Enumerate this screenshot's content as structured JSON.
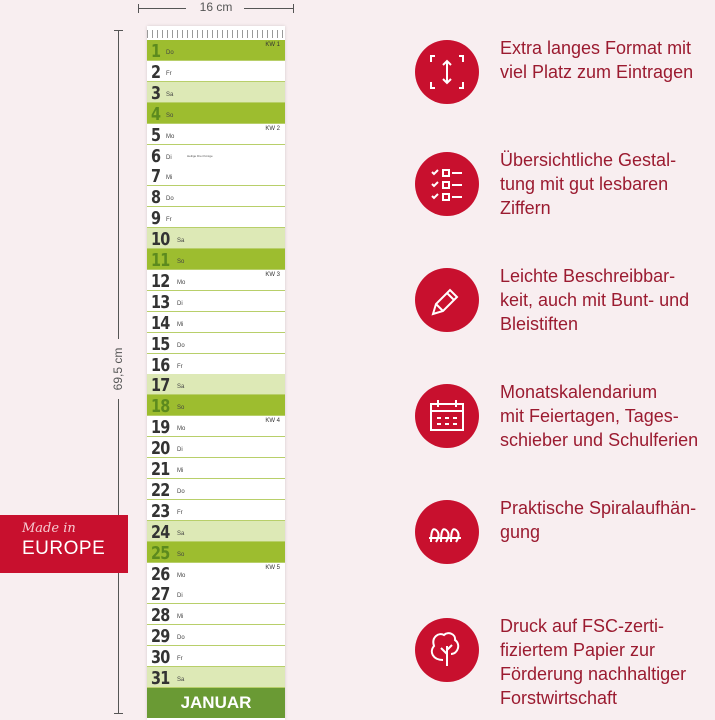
{
  "dimensions": {
    "width_label": "16 cm",
    "height_label": "69,5 cm"
  },
  "badge": {
    "line1": "Made in",
    "line2": "EUROPE"
  },
  "calendar": {
    "month": "JANUAR",
    "days": [
      {
        "n": "1",
        "wd": "Do",
        "type": "sun",
        "kw": "KW 1"
      },
      {
        "n": "2",
        "wd": "Fr",
        "type": "day"
      },
      {
        "n": "3",
        "wd": "Sa",
        "type": "sat"
      },
      {
        "n": "4",
        "wd": "So",
        "type": "sun"
      },
      {
        "n": "5",
        "wd": "Mo",
        "type": "day",
        "kw": "KW 2"
      },
      {
        "n": "6",
        "wd": "Di",
        "type": "day",
        "note": "Heilige Drei Könige"
      },
      {
        "n": "7",
        "wd": "Mi",
        "type": "day"
      },
      {
        "n": "8",
        "wd": "Do",
        "type": "day"
      },
      {
        "n": "9",
        "wd": "Fr",
        "type": "day"
      },
      {
        "n": "10",
        "wd": "Sa",
        "type": "sat"
      },
      {
        "n": "11",
        "wd": "So",
        "type": "sun"
      },
      {
        "n": "12",
        "wd": "Mo",
        "type": "day",
        "kw": "KW 3"
      },
      {
        "n": "13",
        "wd": "Di",
        "type": "day"
      },
      {
        "n": "14",
        "wd": "Mi",
        "type": "day"
      },
      {
        "n": "15",
        "wd": "Do",
        "type": "day"
      },
      {
        "n": "16",
        "wd": "Fr",
        "type": "day"
      },
      {
        "n": "17",
        "wd": "Sa",
        "type": "sat"
      },
      {
        "n": "18",
        "wd": "So",
        "type": "sun"
      },
      {
        "n": "19",
        "wd": "Mo",
        "type": "day",
        "kw": "KW 4"
      },
      {
        "n": "20",
        "wd": "Di",
        "type": "day"
      },
      {
        "n": "21",
        "wd": "Mi",
        "type": "day"
      },
      {
        "n": "22",
        "wd": "Do",
        "type": "day"
      },
      {
        "n": "23",
        "wd": "Fr",
        "type": "day"
      },
      {
        "n": "24",
        "wd": "Sa",
        "type": "sat"
      },
      {
        "n": "25",
        "wd": "So",
        "type": "sun"
      },
      {
        "n": "26",
        "wd": "Mo",
        "type": "day",
        "kw": "KW 5"
      },
      {
        "n": "27",
        "wd": "Di",
        "type": "day"
      },
      {
        "n": "28",
        "wd": "Mi",
        "type": "day"
      },
      {
        "n": "29",
        "wd": "Do",
        "type": "day"
      },
      {
        "n": "30",
        "wd": "Fr",
        "type": "day"
      },
      {
        "n": "31",
        "wd": "Sa",
        "type": "sat"
      }
    ]
  },
  "features": [
    {
      "icon": "expand-vertical-icon",
      "lines": [
        "Extra langes Format mit",
        "viel Platz zum Eintragen"
      ]
    },
    {
      "icon": "checklist-icon",
      "lines": [
        "Übersichtliche Gestal-",
        "tung mit gut lesbaren",
        "Ziffern"
      ]
    },
    {
      "icon": "pencil-icon",
      "lines": [
        "Leichte Beschreibbar-",
        "keit, auch mit Bunt- und",
        "Bleistiften"
      ]
    },
    {
      "icon": "calendar-icon",
      "lines": [
        "Monatskalendarium",
        "mit Feiertagen, Tages-",
        "schieber und Schulferien"
      ]
    },
    {
      "icon": "spiral-icon",
      "lines": [
        "Praktische Spiralaufhän-",
        "gung"
      ]
    },
    {
      "icon": "tree-icon",
      "lines": [
        "Druck auf FSC-zerti-",
        "fiziertem Papier zur",
        "Förderung nachhaltiger",
        "Forstwirtschaft"
      ]
    }
  ],
  "colors": {
    "accent": "#c8102e",
    "text": "#9b1b30",
    "green_dark": "#9dbd2f",
    "green_light": "#dde9b6",
    "footer": "#6a9a34"
  }
}
